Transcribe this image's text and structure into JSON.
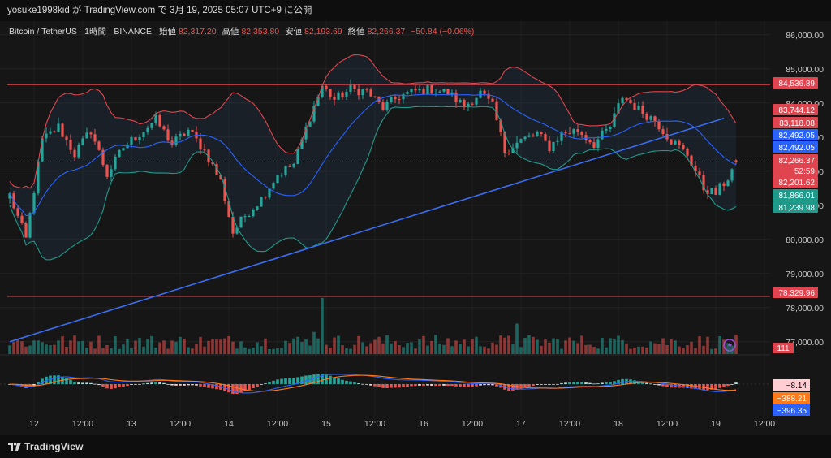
{
  "header": {
    "publish_line": "yosuke1998kid が TradingView.com で 3月 19, 2025 05:07 UTC+9 に公開"
  },
  "legend": {
    "symbol": "Bitcoin / TetherUS · 1時間 · BINANCE",
    "open_label": "始値",
    "open_value": "82,317.20",
    "high_label": "高値",
    "high_value": "82,353.80",
    "low_label": "安値",
    "low_value": "82,193.69",
    "close_label": "終値",
    "close_value": "82,266.37",
    "change": "−50.84 (−0.06%)"
  },
  "footer": {
    "brand": "TradingView"
  },
  "colors": {
    "background": "#161616",
    "up": "#26a69a",
    "down": "#ef5350",
    "bb_upper": "#e0454f",
    "bb_mid": "#2962ff",
    "bb_lower": "#1e9a8a",
    "trendline": "#3a6df0",
    "macd_line": "#2962ff",
    "signal_line": "#ff7a1a"
  },
  "chart_data": {
    "type": "candlestick",
    "interval": "1時間",
    "y_axis": {
      "min": 76400,
      "max": 86400,
      "ticks": [
        77000,
        78000,
        79000,
        80000,
        81000,
        82000,
        83000,
        84000,
        85000,
        86000
      ],
      "tick_labels": [
        "77,000.00",
        "78,000.00",
        "79,000.00",
        "80,000.00",
        "81,000.00",
        "82,000.00",
        "83,000.00",
        "84,000.00",
        "85,000.00",
        "86,000.00"
      ]
    },
    "x_axis": {
      "labels": [
        "12",
        "12:00",
        "13",
        "12:00",
        "14",
        "12:00",
        "15",
        "12:00",
        "16",
        "12:00",
        "17",
        "12:00",
        "18",
        "12:00",
        "19",
        "12:00"
      ],
      "label_bar_index": [
        2,
        14,
        26,
        38,
        50,
        62,
        74,
        86,
        98,
        110,
        122,
        134,
        146,
        158,
        170,
        182
      ]
    },
    "bar_count": 180,
    "anchors": [
      [
        0,
        81300
      ],
      [
        4,
        80000
      ],
      [
        8,
        82900
      ],
      [
        12,
        83300
      ],
      [
        16,
        82500
      ],
      [
        20,
        83200
      ],
      [
        24,
        81900
      ],
      [
        28,
        82700
      ],
      [
        32,
        83100
      ],
      [
        36,
        83500
      ],
      [
        40,
        82800
      ],
      [
        44,
        83200
      ],
      [
        48,
        82600
      ],
      [
        52,
        81700
      ],
      [
        55,
        80200
      ],
      [
        58,
        80700
      ],
      [
        62,
        81200
      ],
      [
        66,
        81900
      ],
      [
        70,
        82200
      ],
      [
        74,
        83600
      ],
      [
        77,
        84500
      ],
      [
        80,
        84100
      ],
      [
        84,
        84400
      ],
      [
        88,
        84350
      ],
      [
        92,
        83850
      ],
      [
        96,
        84200
      ],
      [
        100,
        84350
      ],
      [
        104,
        84400
      ],
      [
        108,
        84300
      ],
      [
        112,
        83900
      ],
      [
        116,
        84300
      ],
      [
        119,
        83900
      ],
      [
        122,
        82600
      ],
      [
        126,
        82900
      ],
      [
        130,
        83100
      ],
      [
        133,
        82700
      ],
      [
        136,
        83100
      ],
      [
        140,
        83200
      ],
      [
        144,
        82800
      ],
      [
        148,
        83300
      ],
      [
        151,
        84200
      ],
      [
        155,
        83800
      ],
      [
        159,
        83500
      ],
      [
        163,
        82900
      ],
      [
        167,
        82500
      ],
      [
        171,
        81500
      ],
      [
        174,
        81350
      ],
      [
        177,
        81800
      ],
      [
        179,
        82266
      ]
    ],
    "ohlc_last": {
      "open": 82317.2,
      "high": 82353.8,
      "low": 82193.69,
      "close": 82266.37,
      "change": -50.84,
      "change_pct": -0.06
    },
    "bollinger": {
      "upper": 83744.12,
      "basis": 82492.05,
      "lower": 81239.98
    },
    "horizontal_lines": [
      84536.89,
      78329.96,
      82266.37
    ],
    "trendline": {
      "from": {
        "bar": 0,
        "price": 77000
      },
      "to": {
        "bar": 176,
        "price": 83550
      }
    },
    "price_labels": [
      {
        "text": "84,536.89",
        "value": 84536.89,
        "bg": "#e0454f"
      },
      {
        "text": "83,744.12",
        "value": 83744.12,
        "bg": "#e0454f"
      },
      {
        "text": "83,118.08",
        "value": 83118.08,
        "bg": "#e0454f"
      },
      {
        "text": "82,492.05",
        "value": 82492.05,
        "bg": "#2962ff"
      },
      {
        "text": "82,492.05",
        "value": 82492.05,
        "bg": "#2962ff"
      },
      {
        "text": "82,266.37",
        "value": 82266.37,
        "bg": "#e0454f"
      },
      {
        "text": "52:59",
        "value": 82266.37,
        "bg": "#e0454f"
      },
      {
        "text": "82,201.62",
        "value": 82201.62,
        "bg": "#e0454f"
      },
      {
        "text": "81,866.01",
        "value": 81866.01,
        "bg": "#1e9a8a"
      },
      {
        "text": "81,239.98",
        "value": 81239.98,
        "bg": "#1e9a8a"
      },
      {
        "text": "78,329.96",
        "value": 78329.96,
        "bg": "#e0454f"
      }
    ],
    "volume": {
      "label": "111"
    },
    "macd": {
      "histogram": -8.14,
      "signal": -388.21,
      "macd": -396.35,
      "labels": [
        "−8.14",
        "−388.21",
        "−396.35"
      ]
    }
  }
}
